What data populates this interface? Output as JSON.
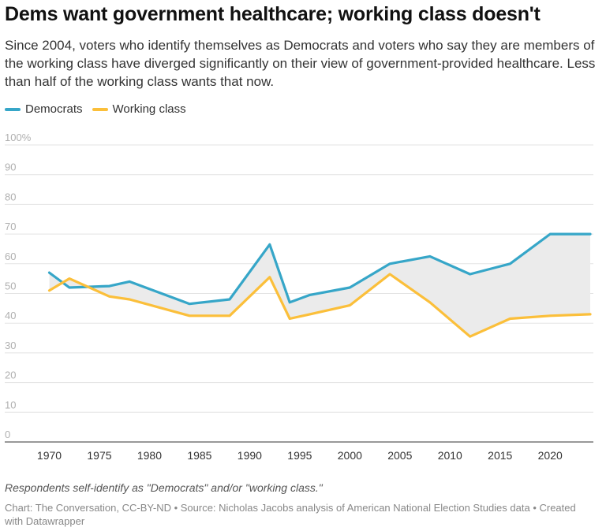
{
  "title": "Dems want government healthcare; working class doesn't",
  "subtitle": "Since 2004, voters who identify themselves as Democrats and voters who say they are members of the working class have diverged significantly on their view of government-provided healthcare. Less than half of the working class wants that now.",
  "note": "Respondents self-identify as \"Democrats\" and/or \"working class.\"",
  "credits": "Chart: The Conversation, CC-BY-ND • Source: Nicholas Jacobs analysis of American National Election Studies data • Created with Datawrapper",
  "colors": {
    "democrats": "#36a6c8",
    "working_class": "#fbbf3a",
    "gap_fill": "#ebebeb",
    "grid": "#e3e3e3",
    "tick": "#b0b0b0"
  },
  "chart_data": {
    "type": "line",
    "xlim": [
      1970,
      2024
    ],
    "ylim": [
      0,
      100
    ],
    "x_ticks": [
      1970,
      1975,
      1980,
      1985,
      1990,
      1995,
      2000,
      2005,
      2010,
      2015,
      2020
    ],
    "y_ticks": [
      0,
      10,
      20,
      30,
      40,
      50,
      60,
      70,
      80,
      90,
      100
    ],
    "y_tick_labels": [
      "0",
      "10",
      "20",
      "30",
      "40",
      "50",
      "60",
      "70",
      "80",
      "90",
      "100%"
    ],
    "grid": true,
    "legend_position": "top-left",
    "area_between_series": true,
    "series": [
      {
        "name": "Democrats",
        "color": "#36a6c8",
        "x": [
          1970,
          1972,
          1976,
          1978,
          1984,
          1988,
          1992,
          1994,
          1996,
          2000,
          2004,
          2008,
          2012,
          2016,
          2020,
          2024
        ],
        "y": [
          57,
          52,
          52.5,
          54,
          46.5,
          48,
          66.5,
          47,
          49.5,
          52,
          60,
          62.5,
          56.5,
          60,
          70,
          70
        ]
      },
      {
        "name": "Working class",
        "color": "#fbbf3a",
        "x": [
          1970,
          1972,
          1976,
          1978,
          1984,
          1988,
          1992,
          1994,
          1996,
          2000,
          2004,
          2008,
          2012,
          2016,
          2020,
          2024
        ],
        "y": [
          51,
          55,
          49,
          48,
          42.5,
          42.5,
          55.5,
          41.5,
          43,
          46,
          56.5,
          47,
          35.5,
          41.5,
          42.5,
          43
        ]
      }
    ]
  }
}
